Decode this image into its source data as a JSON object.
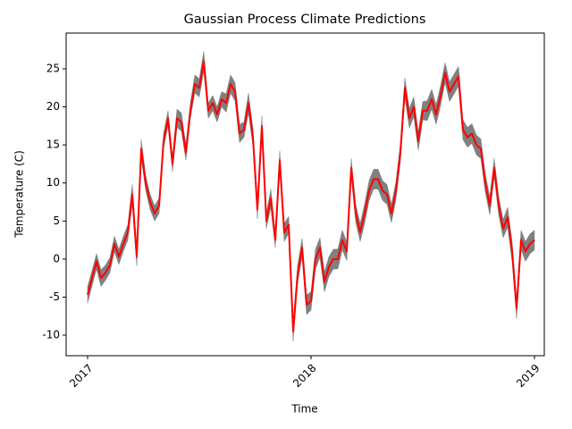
{
  "chart_data": {
    "type": "line",
    "title": "Gaussian Process Climate Predictions",
    "x_label": "Time",
    "y_label": "Temperature (C)",
    "x": [
      2017,
      2017.02,
      2017.04,
      2017.06,
      2017.08,
      2017.1,
      2017.12,
      2017.14,
      2017.16,
      2017.18,
      2017.2,
      2017.22,
      2017.24,
      2017.26,
      2017.28,
      2017.3,
      2017.32,
      2017.34,
      2017.36,
      2017.38,
      2017.4,
      2017.42,
      2017.44,
      2017.46,
      2017.48,
      2017.5,
      2017.52,
      2017.54,
      2017.56,
      2017.58,
      2017.6,
      2017.62,
      2017.64,
      2017.66,
      2017.68,
      2017.7,
      2017.72,
      2017.74,
      2017.76,
      2017.78,
      2017.8,
      2017.82,
      2017.84,
      2017.86,
      2017.88,
      2017.9,
      2017.92,
      2017.94,
      2017.96,
      2017.98,
      2018,
      2018.02,
      2018.04,
      2018.06,
      2018.08,
      2018.1,
      2018.12,
      2018.14,
      2018.16,
      2018.18,
      2018.2,
      2018.22,
      2018.24,
      2018.26,
      2018.28,
      2018.3,
      2018.32,
      2018.34,
      2018.36,
      2018.38,
      2018.4,
      2018.42,
      2018.44,
      2018.46,
      2018.48,
      2018.5,
      2018.52,
      2018.54,
      2018.56,
      2018.58,
      2018.6,
      2018.62,
      2018.64,
      2018.66,
      2018.68,
      2018.7,
      2018.72,
      2018.74,
      2018.76,
      2018.78,
      2018.8,
      2018.82,
      2018.84,
      2018.86,
      2018.88,
      2018.9,
      2018.92,
      2018.94,
      2018.96,
      2018.98,
      2019
    ],
    "series": [
      {
        "color": "#ff0000",
        "band_color": "#808080",
        "values": [
          -4.7,
          -2.5,
          -0.3,
          -2.5,
          -1.8,
          -0.8,
          2,
          0.3,
          2,
          3.5,
          8.5,
          0.3,
          14.5,
          10,
          7.5,
          6,
          7,
          15.5,
          18.5,
          12.5,
          18.5,
          18,
          14,
          19.5,
          23,
          22.5,
          26,
          19.5,
          20.5,
          19,
          21,
          20.5,
          23,
          22,
          16.5,
          17,
          20.5,
          16,
          6.5,
          17.5,
          5,
          8,
          2.5,
          13,
          3.5,
          4.5,
          -9.5,
          -2,
          1.5,
          -6,
          -5.5,
          0,
          1.5,
          -3,
          -1,
          0,
          0,
          2.5,
          1,
          12,
          6,
          3.5,
          6,
          9,
          10.5,
          10.5,
          9,
          8.5,
          6,
          9,
          14,
          22.5,
          18.5,
          20,
          15.5,
          19.5,
          19.5,
          21,
          19,
          21.5,
          24.5,
          22,
          23,
          24,
          17,
          16,
          16.5,
          15,
          14.5,
          10,
          7,
          12,
          7,
          4,
          5.5,
          1,
          -6.5,
          2.5,
          1,
          2,
          2.5
        ],
        "error": [
          1.1,
          1,
          1,
          1.1,
          1,
          1,
          1,
          1,
          1,
          1,
          1.3,
          1.2,
          1.2,
          1,
          1,
          1,
          1,
          1,
          1,
          1,
          1.2,
          1.2,
          1,
          1,
          1.2,
          1.2,
          1.3,
          1,
          1,
          1,
          1,
          1.2,
          1.2,
          1.2,
          1.2,
          1,
          1.3,
          1.2,
          1.2,
          1.3,
          1,
          1.2,
          1,
          1.2,
          1.2,
          1.1,
          1.3,
          1.2,
          1.2,
          1.3,
          1.2,
          1.3,
          1.3,
          1.3,
          1.3,
          1.3,
          1.3,
          1.3,
          1.2,
          1.2,
          1.2,
          1.2,
          1.3,
          1.3,
          1.3,
          1.3,
          1.3,
          1.3,
          1.2,
          1.2,
          1.2,
          1.3,
          1.3,
          1.3,
          1.2,
          1.2,
          1.3,
          1.3,
          1.3,
          1.3,
          1.3,
          1.3,
          1.3,
          1.3,
          1.3,
          1.3,
          1.3,
          1.3,
          1.3,
          1.2,
          1.2,
          1.2,
          1.2,
          1.2,
          1.3,
          1.3,
          1.3,
          1.3,
          1.3,
          1.3,
          1.3
        ]
      }
    ],
    "xlim": [
      2016.904,
      2019.044
    ],
    "xticks": [
      2017,
      2018,
      2019
    ],
    "ylim": [
      -12.7,
      29.7
    ],
    "yticks": [
      -10,
      -5,
      0,
      5,
      10,
      15,
      20,
      25
    ],
    "grid": false
  }
}
